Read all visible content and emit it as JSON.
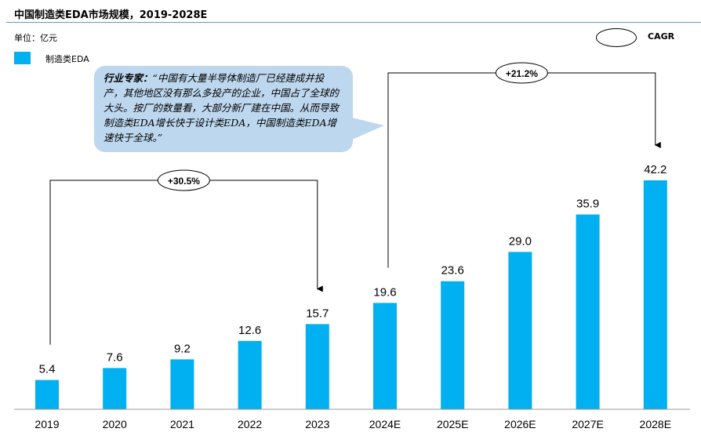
{
  "chart_data": {
    "type": "bar",
    "title": "中国制造类EDA市场规模，2019-2028E",
    "unit": "单位：亿元",
    "categories": [
      "2019",
      "2020",
      "2021",
      "2022",
      "2023",
      "2024E",
      "2025E",
      "2026E",
      "2027E",
      "2028E"
    ],
    "series": [
      {
        "name": "制造类EDA",
        "values": [
          5.4,
          7.6,
          9.2,
          12.6,
          15.7,
          19.6,
          23.6,
          29.0,
          35.9,
          42.2
        ],
        "color": "#00b0f0"
      }
    ],
    "value_labels": [
      "5.4",
      "7.6",
      "9.2",
      "12.6",
      "15.7",
      "19.6",
      "23.6",
      "29.0",
      "35.9",
      "42.2"
    ],
    "legend": "top-left",
    "grid": false,
    "cagr_label": "CAGR",
    "annotations": [
      {
        "from": "2019",
        "to": "2023",
        "label": "+30.5%"
      },
      {
        "from": "2024E",
        "to": "2028E",
        "label": "+21.2%"
      }
    ],
    "callout": {
      "speaker": "行业专家：",
      "quote": "“中国有大量半导体制造厂已经建成并投产，其他地区没有那么多投产的企业，中国占了全球的大头。按厂的数量看，大部分新厂建在中国。从而导致制造类EDA增长快于设计类EDA，中国制造类EDA增速快于全球。”"
    }
  }
}
